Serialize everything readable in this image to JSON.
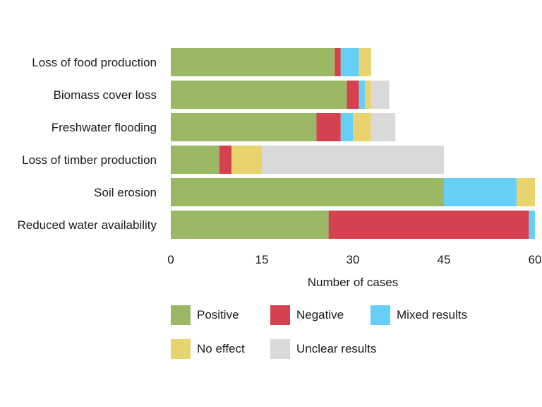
{
  "chart_data": {
    "type": "bar",
    "orientation": "horizontal",
    "stacked": true,
    "title": "",
    "xlabel": "Number of cases",
    "ylabel": "",
    "xlim": [
      0,
      60
    ],
    "xticks": [
      0,
      15,
      30,
      45,
      60
    ],
    "grid": false,
    "legend_position": "bottom",
    "categories": [
      "Loss of food production",
      "Biomass cover loss",
      "Freshwater flooding",
      "Loss of timber production",
      "Soil erosion",
      "Reduced water availability"
    ],
    "series": [
      {
        "name": "Positive",
        "color": "#9bb865",
        "values": [
          27,
          29,
          24,
          8,
          45,
          26
        ]
      },
      {
        "name": "Negative",
        "color": "#d5424f",
        "values": [
          1,
          2,
          4,
          2,
          0,
          33
        ]
      },
      {
        "name": "Mixed results",
        "color": "#66cff5",
        "values": [
          3,
          1,
          2,
          0,
          12,
          1
        ]
      },
      {
        "name": "No effect",
        "color": "#e8d36d",
        "values": [
          2,
          1,
          3,
          5,
          3,
          0
        ]
      },
      {
        "name": "Unclear results",
        "color": "#d9d9d9",
        "values": [
          0,
          3,
          4,
          30,
          0,
          0
        ]
      }
    ]
  }
}
